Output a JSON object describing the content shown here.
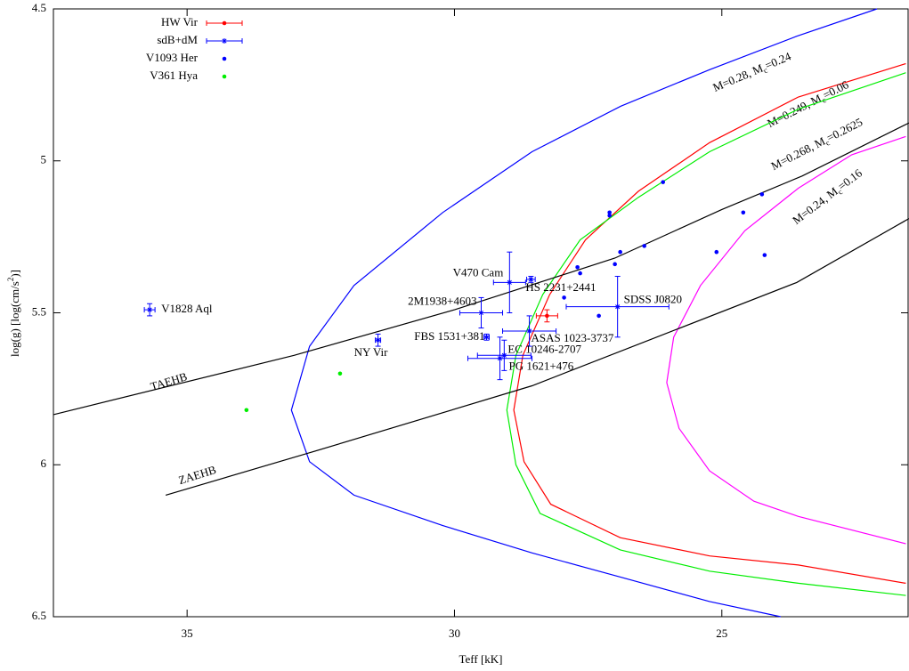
{
  "chart_data": {
    "type": "scatter",
    "xlabel": "Teff [kK]",
    "ylabel_parts": [
      "log(g) [log(cm/s",
      "2",
      ")]"
    ],
    "xlim": [
      37.5,
      21.5
    ],
    "ylim": [
      4.5,
      6.5
    ],
    "y_inverted": true,
    "xticks": [
      35,
      30,
      25
    ],
    "yticks": [
      4.5,
      5,
      5.5,
      6,
      6.5
    ],
    "legend": "top-left",
    "series": [
      {
        "name": "HW Vir",
        "color": "#ff0000",
        "marker": "dot",
        "x": [
          28.27
        ],
        "values": [
          5.51
        ],
        "xerr": [
          0.2
        ],
        "yerr": [
          0.02
        ]
      },
      {
        "name": "sdB+dM",
        "color": "#0000ff",
        "marker": "star",
        "labels": [
          "V1828 Aql",
          "NY Vir",
          "V470 Cam",
          "HS 2231+2441",
          "2M1938+4603",
          "FBS 1531+381",
          "ASAS 1023-3737",
          "EC 10246-2707",
          "PG 1621+476",
          "SDSS J0820"
        ],
        "x": [
          35.7,
          31.43,
          28.97,
          28.57,
          29.5,
          29.4,
          28.6,
          29.07,
          29.15,
          26.95
        ],
        "values": [
          5.49,
          5.59,
          5.4,
          5.39,
          5.5,
          5.58,
          5.56,
          5.64,
          5.65,
          5.48
        ],
        "xerr": [
          0.1,
          0.05,
          0.3,
          0.08,
          0.4,
          0.05,
          0.5,
          0.5,
          0.6,
          0.96
        ],
        "yerr": [
          0.02,
          0.02,
          0.1,
          0.01,
          0.05,
          0.01,
          0.05,
          0.05,
          0.07,
          0.1
        ]
      },
      {
        "name": "V1093 Her",
        "color": "#0000ff",
        "marker": "dot",
        "x": [
          26.1,
          27.1,
          27.1,
          24.6,
          24.25,
          24.2,
          25.1,
          26.45,
          26.9,
          27.0,
          27.7,
          27.65,
          27.95,
          27.3
        ],
        "values": [
          5.07,
          5.17,
          5.18,
          5.17,
          5.11,
          5.31,
          5.3,
          5.28,
          5.3,
          5.34,
          5.35,
          5.37,
          5.45,
          5.51
        ]
      },
      {
        "name": "V361 Hya",
        "color": "#00ee00",
        "marker": "dot",
        "x": [
          33.89,
          32.14
        ],
        "values": [
          5.82,
          5.7
        ]
      }
    ],
    "curves": [
      {
        "label_parts": [
          "M=0.28, M",
          "c",
          "=0.24"
        ],
        "color": "#0000ff",
        "x": [
          23.9,
          25.23,
          26.89,
          28.55,
          30.22,
          31.88,
          32.71,
          33.05,
          32.71,
          31.88,
          30.22,
          28.55,
          26.89,
          25.23,
          23.6,
          22.1
        ],
        "values": [
          6.5,
          6.45,
          6.37,
          6.29,
          6.2,
          6.1,
          5.99,
          5.82,
          5.61,
          5.41,
          5.17,
          4.97,
          4.82,
          4.7,
          4.59,
          4.5
        ]
      },
      {
        "label_parts": [
          "M=0.249, M",
          "c",
          "=0.06"
        ],
        "color": "#ff0000",
        "x": [
          21.56,
          23.57,
          25.23,
          26.9,
          28.2,
          28.7,
          28.89,
          28.72,
          28.22,
          27.55,
          26.56,
          25.23,
          23.57,
          21.56
        ],
        "values": [
          6.39,
          6.33,
          6.3,
          6.24,
          6.13,
          5.99,
          5.82,
          5.64,
          5.44,
          5.26,
          5.1,
          4.94,
          4.79,
          4.68
        ]
      },
      {
        "label_parts": [
          "M=0.268, M",
          "c",
          "=0.2625"
        ],
        "color": "#00ee00",
        "x": [
          21.56,
          23.57,
          25.23,
          26.9,
          28.4,
          28.85,
          29.02,
          28.85,
          28.35,
          27.65,
          26.56,
          25.23,
          23.57,
          21.56
        ],
        "values": [
          6.43,
          6.39,
          6.35,
          6.28,
          6.16,
          6.0,
          5.82,
          5.64,
          5.44,
          5.26,
          5.12,
          4.97,
          4.83,
          4.71
        ]
      },
      {
        "label_parts": [
          "M=0.24, M",
          "c",
          "=0.16"
        ],
        "color": "#ff00ff",
        "x": [
          21.56,
          23.57,
          24.4,
          25.23,
          25.8,
          26.03,
          25.9,
          25.4,
          24.57,
          23.57,
          22.57,
          21.56
        ],
        "values": [
          6.26,
          6.17,
          6.12,
          6.02,
          5.88,
          5.73,
          5.58,
          5.41,
          5.23,
          5.09,
          4.98,
          4.92
        ]
      },
      {
        "label": "TAEHB",
        "color": "#000000",
        "x": [
          37.5,
          33,
          30,
          27,
          25,
          23.5,
          21.5
        ],
        "values": [
          5.835,
          5.64,
          5.49,
          5.32,
          5.16,
          5.05,
          4.875
        ]
      },
      {
        "label": "ZAEHB",
        "color": "#000000",
        "x": [
          35.4,
          32.7,
          28.55,
          23.6,
          21.5
        ],
        "values": [
          6.1,
          5.96,
          5.74,
          5.4,
          5.19
        ]
      }
    ]
  }
}
